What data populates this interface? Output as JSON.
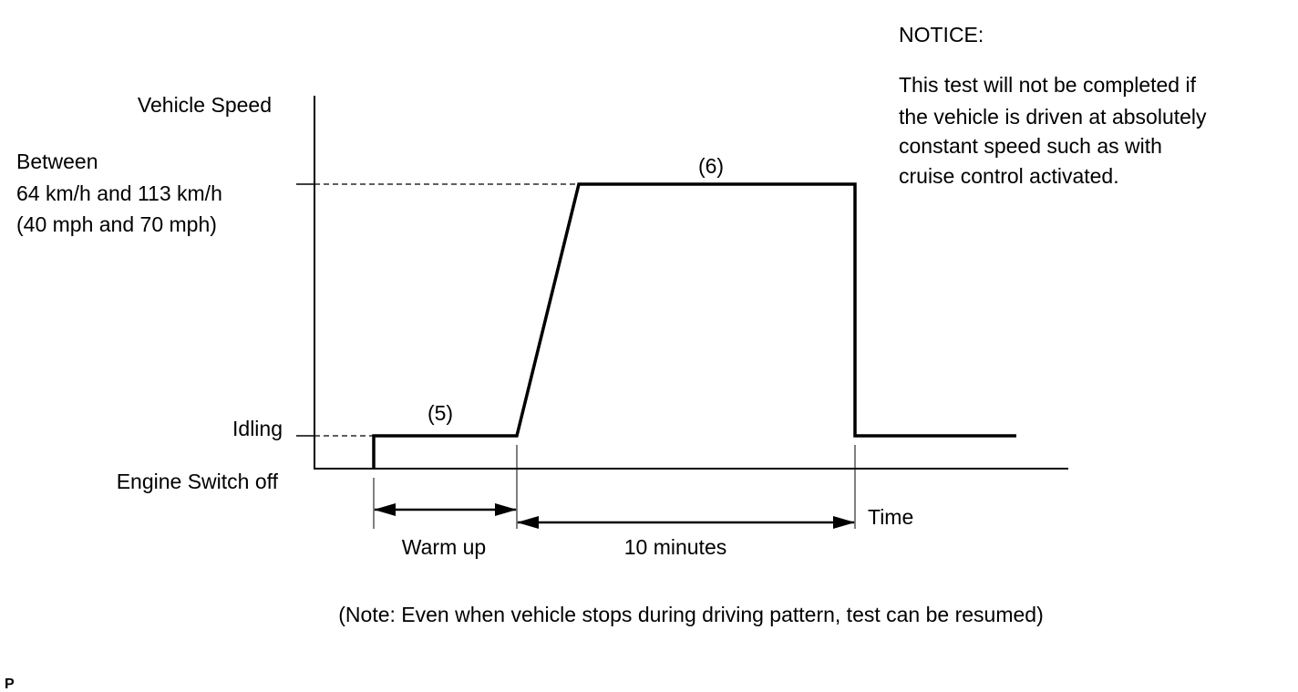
{
  "y_axis_label": "Vehicle Speed",
  "speed_level_label": [
    "Between",
    "64 km/h and 113 km/h",
    "(40 mph and 70 mph)"
  ],
  "idling_label": "Idling",
  "engine_off_label": "Engine Switch off",
  "x_axis_label": "Time",
  "phase_5_label": "(5)",
  "phase_6_label": "(6)",
  "warm_up_label": "Warm up",
  "duration_label": "10 minutes",
  "note": "(Note: Even when vehicle stops during driving pattern, test can be resumed)",
  "notice": {
    "title": "NOTICE:",
    "lines": [
      "This test will not be completed if",
      "the vehicle is driven at absolutely",
      "constant speed such as with",
      "cruise control activated."
    ]
  },
  "corner_mark": "P"
}
